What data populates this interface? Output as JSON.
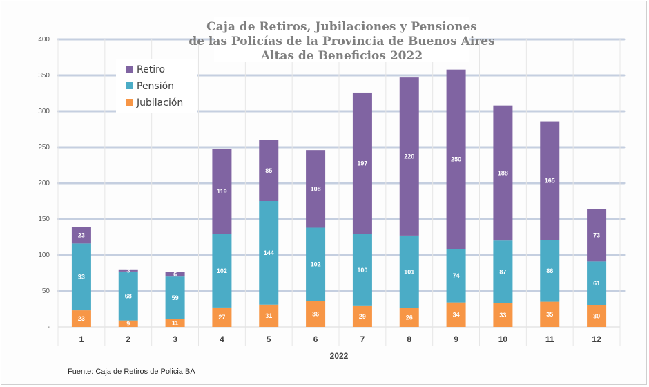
{
  "chart_data": {
    "type": "bar",
    "stacked": true,
    "title": [
      "Caja de Retiros, Jubilaciones y Pensiones",
      "de las Policías de la Provincia de Buenos Aires",
      "Altas de Beneficios 2022"
    ],
    "xlabel": "2022",
    "ylabel": "",
    "ylim": [
      0,
      400
    ],
    "yticks": [
      "-",
      "50",
      "100",
      "150",
      "200",
      "250",
      "300",
      "350",
      "400"
    ],
    "categories": [
      "1",
      "2",
      "3",
      "4",
      "5",
      "6",
      "7",
      "8",
      "9",
      "10",
      "11",
      "12"
    ],
    "series": [
      {
        "name": "Jubilación",
        "color": "#f79646",
        "values": [
          23,
          9,
          11,
          27,
          31,
          36,
          29,
          26,
          34,
          33,
          35,
          30
        ]
      },
      {
        "name": "Pensión",
        "color": "#4bacc6",
        "values": [
          93,
          68,
          59,
          102,
          144,
          102,
          100,
          101,
          74,
          87,
          86,
          61
        ]
      },
      {
        "name": "Retiro",
        "color": "#8064a2",
        "values": [
          23,
          3,
          6,
          119,
          85,
          108,
          197,
          220,
          250,
          188,
          165,
          73
        ]
      }
    ],
    "legend": {
      "position": "top-left",
      "order": [
        "Retiro",
        "Pensión",
        "Jubilación"
      ]
    },
    "grid": true,
    "gridline_color": "#c5cfe0"
  },
  "source_text": "Fuente: Caja de Retiros de Policia BA"
}
